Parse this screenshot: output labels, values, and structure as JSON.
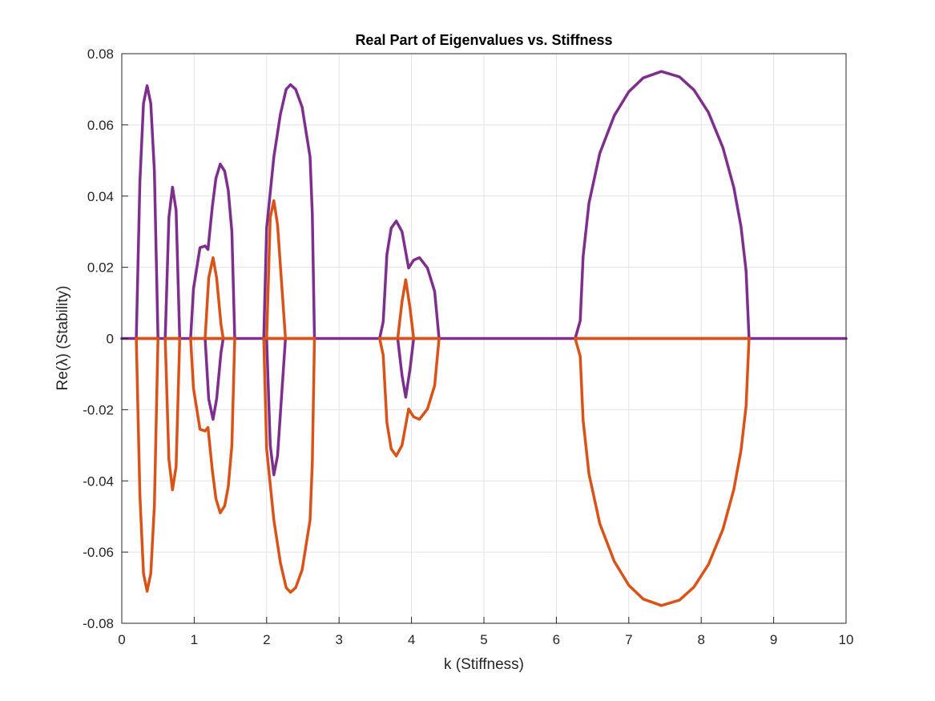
{
  "chart_data": {
    "type": "line",
    "title": "Real Part of Eigenvalues vs. Stiffness",
    "xlabel": "k (Stiffness)",
    "ylabel": "Re(λ) (Stability)",
    "xlim": [
      0,
      10
    ],
    "ylim": [
      -0.08,
      0.08
    ],
    "xticks": [
      0,
      1,
      2,
      3,
      4,
      5,
      6,
      7,
      8,
      9,
      10
    ],
    "xtick_labels": [
      "0",
      "1",
      "2",
      "3",
      "4",
      "5",
      "6",
      "7",
      "8",
      "9",
      "10"
    ],
    "yticks": [
      -0.08,
      -0.06,
      -0.04,
      -0.02,
      0,
      0.02,
      0.04,
      0.06,
      0.08
    ],
    "ytick_labels": [
      "-0.08",
      "-0.06",
      "-0.04",
      "-0.02",
      "0",
      "0.02",
      "0.04",
      "0.06",
      "0.08"
    ],
    "grid": true,
    "legend": "none",
    "series": [
      {
        "id": "branch-purple",
        "color": "#7E2F8E",
        "segments": [
          [
            [
              0,
              0
            ],
            [
              10,
              0
            ]
          ],
          [
            [
              0.2,
              0
            ],
            [
              0.25,
              0.044
            ],
            [
              0.3,
              0.066
            ],
            [
              0.35,
              0.071
            ],
            [
              0.4,
              0.066
            ],
            [
              0.45,
              0.047
            ],
            [
              0.5,
              0
            ]
          ],
          [
            [
              0.6,
              0
            ],
            [
              0.65,
              0.034
            ],
            [
              0.7,
              0.0425
            ],
            [
              0.75,
              0.036
            ],
            [
              0.8,
              0
            ]
          ],
          [
            [
              0.95,
              0
            ],
            [
              0.99,
              0.014
            ],
            [
              1.08,
              0.0255
            ],
            [
              1.15,
              0.026
            ],
            [
              1.19,
              0.025
            ],
            [
              1.25,
              0.037
            ],
            [
              1.3,
              0.045
            ],
            [
              1.36,
              0.049
            ],
            [
              1.42,
              0.047
            ],
            [
              1.47,
              0.0416
            ],
            [
              1.52,
              0.03
            ],
            [
              1.56,
              0
            ]
          ],
          [
            [
              1.15,
              0
            ],
            [
              1.2,
              -0.017
            ],
            [
              1.26,
              -0.0227
            ],
            [
              1.31,
              -0.017
            ],
            [
              1.37,
              -0.004
            ],
            [
              1.4,
              0
            ]
          ],
          [
            [
              1.96,
              0
            ],
            [
              2.0,
              0.031
            ],
            [
              2.1,
              0.051
            ],
            [
              2.19,
              0.063
            ],
            [
              2.27,
              0.07
            ],
            [
              2.33,
              0.0713
            ],
            [
              2.4,
              0.07
            ],
            [
              2.49,
              0.065
            ],
            [
              2.6,
              0.051
            ],
            [
              2.63,
              0.035
            ],
            [
              2.66,
              0
            ]
          ],
          [
            [
              2.0,
              0
            ],
            [
              2.05,
              -0.03
            ],
            [
              2.1,
              -0.0383
            ],
            [
              2.15,
              -0.033
            ],
            [
              2.26,
              0
            ]
          ],
          [
            [
              3.56,
              0
            ],
            [
              3.61,
              0.0047
            ],
            [
              3.66,
              0.0236
            ],
            [
              3.72,
              0.031
            ],
            [
              3.79,
              0.033
            ],
            [
              3.87,
              0.03
            ],
            [
              3.96,
              0.0198
            ],
            [
              4.03,
              0.022
            ],
            [
              4.11,
              0.0227
            ],
            [
              4.22,
              0.0198
            ],
            [
              4.32,
              0.0132
            ],
            [
              4.38,
              0
            ]
          ],
          [
            [
              3.81,
              0
            ],
            [
              3.87,
              -0.0104
            ],
            [
              3.92,
              -0.0165
            ],
            [
              3.98,
              -0.0085
            ],
            [
              4.03,
              0
            ]
          ],
          [
            [
              6.26,
              0
            ],
            [
              6.33,
              0.005
            ],
            [
              6.37,
              0.023
            ],
            [
              6.45,
              0.038
            ],
            [
              6.6,
              0.052
            ],
            [
              6.8,
              0.0626
            ],
            [
              7.0,
              0.0693
            ],
            [
              7.2,
              0.0732
            ],
            [
              7.45,
              0.075
            ],
            [
              7.7,
              0.0735
            ],
            [
              7.9,
              0.0698
            ],
            [
              8.1,
              0.0635
            ],
            [
              8.3,
              0.0536
            ],
            [
              8.45,
              0.0424
            ],
            [
              8.55,
              0.0314
            ],
            [
              8.62,
              0.019
            ],
            [
              8.66,
              0
            ]
          ]
        ]
      },
      {
        "id": "branch-orange",
        "color": "#D95319",
        "segments": [
          [
            [
              0.2,
              0
            ],
            [
              0.5,
              0
            ]
          ],
          [
            [
              0.6,
              0
            ],
            [
              0.8,
              0
            ]
          ],
          [
            [
              0.95,
              0
            ],
            [
              1.56,
              0
            ]
          ],
          [
            [
              1.96,
              0
            ],
            [
              2.66,
              0
            ]
          ],
          [
            [
              3.56,
              0
            ],
            [
              4.38,
              0
            ]
          ],
          [
            [
              6.26,
              0
            ],
            [
              8.66,
              0
            ]
          ],
          [
            [
              0.2,
              0
            ],
            [
              0.25,
              -0.044
            ],
            [
              0.3,
              -0.066
            ],
            [
              0.35,
              -0.071
            ],
            [
              0.4,
              -0.066
            ],
            [
              0.45,
              -0.047
            ],
            [
              0.5,
              0
            ]
          ],
          [
            [
              0.6,
              0
            ],
            [
              0.65,
              -0.034
            ],
            [
              0.7,
              -0.0425
            ],
            [
              0.75,
              -0.036
            ],
            [
              0.8,
              0
            ]
          ],
          [
            [
              0.95,
              0
            ],
            [
              0.99,
              -0.014
            ],
            [
              1.08,
              -0.0255
            ],
            [
              1.15,
              -0.026
            ],
            [
              1.19,
              -0.025
            ],
            [
              1.25,
              -0.037
            ],
            [
              1.3,
              -0.045
            ],
            [
              1.36,
              -0.049
            ],
            [
              1.42,
              -0.047
            ],
            [
              1.47,
              -0.0416
            ],
            [
              1.52,
              -0.03
            ],
            [
              1.56,
              0
            ]
          ],
          [
            [
              1.15,
              0
            ],
            [
              1.2,
              0.017
            ],
            [
              1.26,
              0.0227
            ],
            [
              1.31,
              0.017
            ],
            [
              1.37,
              0.004
            ],
            [
              1.4,
              0
            ]
          ],
          [
            [
              1.96,
              0
            ],
            [
              2.0,
              -0.031
            ],
            [
              2.1,
              -0.051
            ],
            [
              2.19,
              -0.063
            ],
            [
              2.27,
              -0.07
            ],
            [
              2.33,
              -0.0713
            ],
            [
              2.4,
              -0.07
            ],
            [
              2.49,
              -0.065
            ],
            [
              2.6,
              -0.051
            ],
            [
              2.63,
              -0.035
            ],
            [
              2.66,
              0
            ]
          ],
          [
            [
              2.0,
              0
            ],
            [
              2.05,
              0.034
            ],
            [
              2.1,
              0.0387
            ],
            [
              2.15,
              0.032
            ],
            [
              2.26,
              0
            ]
          ],
          [
            [
              3.56,
              0
            ],
            [
              3.61,
              -0.0047
            ],
            [
              3.66,
              -0.0236
            ],
            [
              3.72,
              -0.031
            ],
            [
              3.79,
              -0.033
            ],
            [
              3.87,
              -0.03
            ],
            [
              3.96,
              -0.0198
            ],
            [
              4.03,
              -0.022
            ],
            [
              4.11,
              -0.0227
            ],
            [
              4.22,
              -0.0198
            ],
            [
              4.32,
              -0.0132
            ],
            [
              4.38,
              0
            ]
          ],
          [
            [
              3.81,
              0
            ],
            [
              3.87,
              0.0104
            ],
            [
              3.92,
              0.0165
            ],
            [
              3.98,
              0.0085
            ],
            [
              4.03,
              0
            ]
          ],
          [
            [
              6.26,
              0
            ],
            [
              6.33,
              -0.005
            ],
            [
              6.37,
              -0.023
            ],
            [
              6.45,
              -0.038
            ],
            [
              6.6,
              -0.052
            ],
            [
              6.8,
              -0.0626
            ],
            [
              7.0,
              -0.0693
            ],
            [
              7.2,
              -0.0732
            ],
            [
              7.45,
              -0.075
            ],
            [
              7.7,
              -0.0735
            ],
            [
              7.9,
              -0.0698
            ],
            [
              8.1,
              -0.0635
            ],
            [
              8.3,
              -0.0536
            ],
            [
              8.45,
              -0.0424
            ],
            [
              8.55,
              -0.0314
            ],
            [
              8.62,
              -0.019
            ],
            [
              8.66,
              0
            ]
          ]
        ]
      }
    ]
  }
}
